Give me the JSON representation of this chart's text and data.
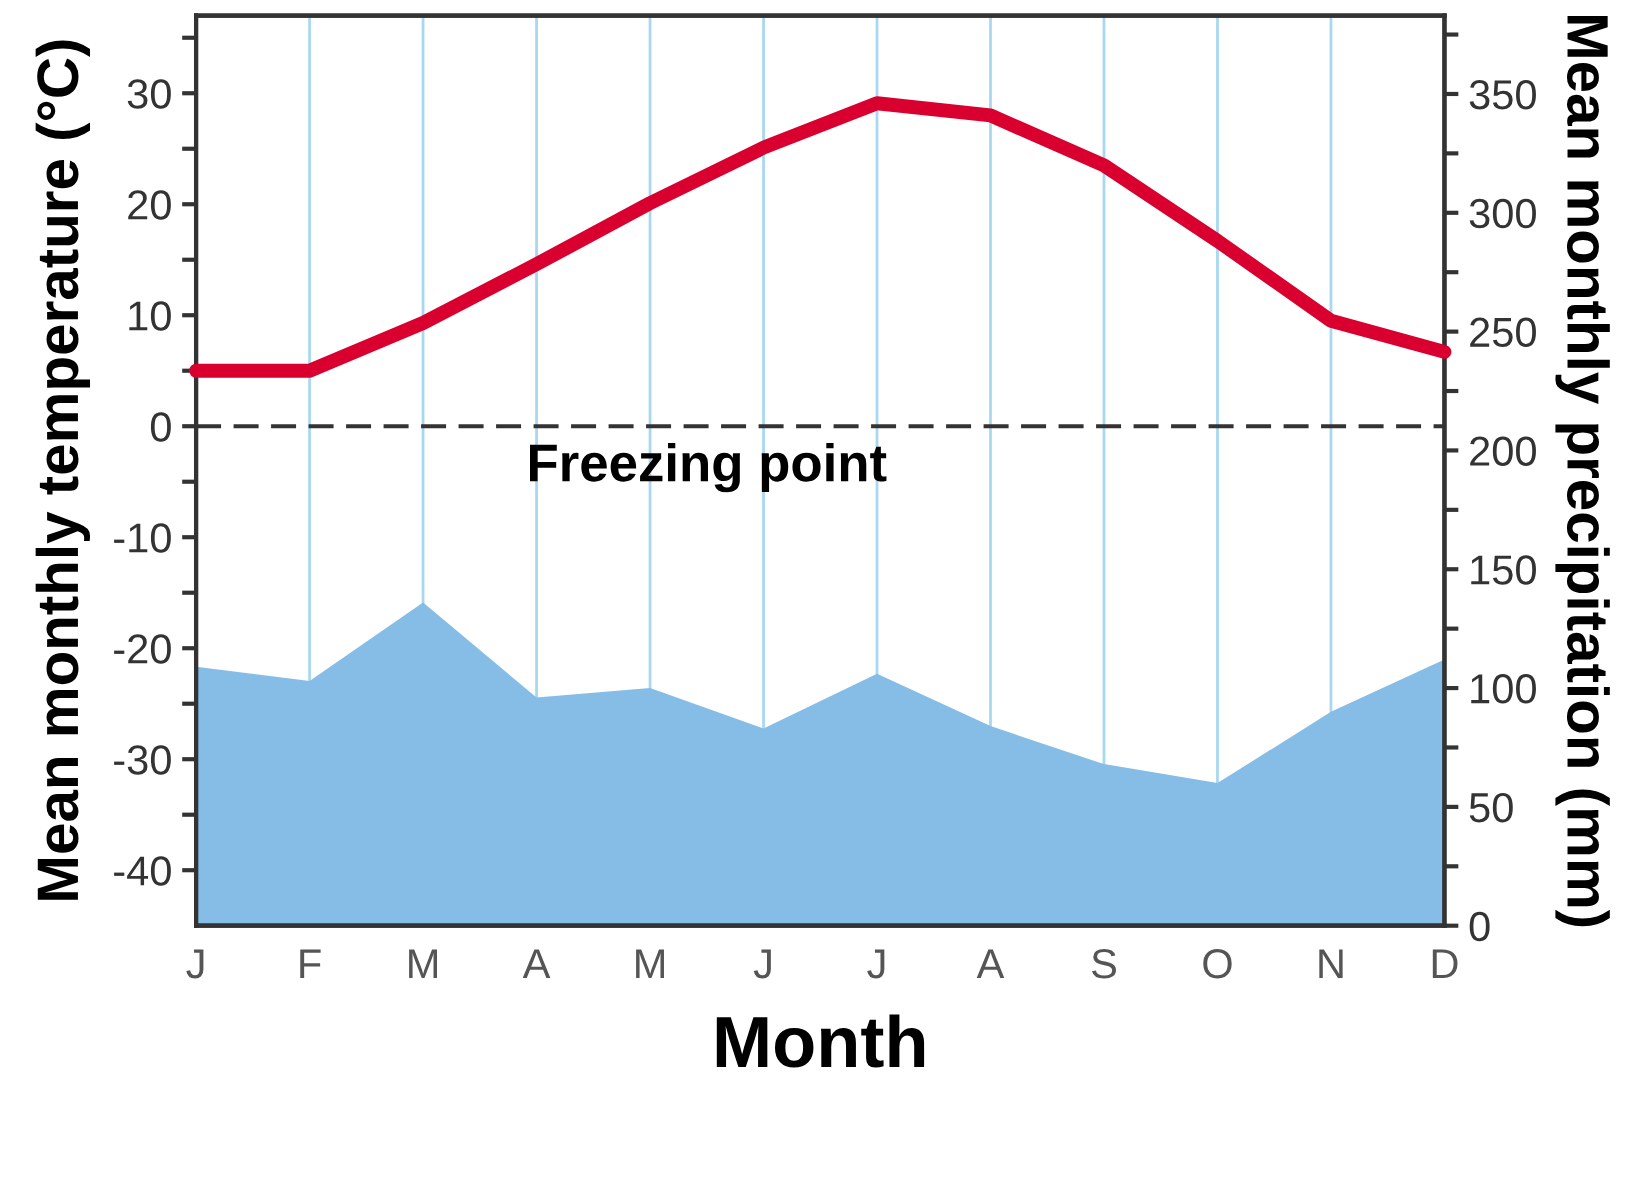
{
  "chart_data": {
    "type": "line",
    "xlabel": "Month",
    "ylabel": "Mean monthly temperature (°C)",
    "y2label": "Mean monthly precipitation (mm)",
    "categories": [
      "J",
      "F",
      "M",
      "A",
      "M",
      "J",
      "J",
      "A",
      "S",
      "O",
      "N",
      "D"
    ],
    "series": [
      {
        "type": "area",
        "axis": "y2",
        "color": "#85bde6",
        "values": [
          109,
          103,
          136,
          96,
          100,
          83,
          106,
          84,
          68,
          60,
          90,
          112
        ]
      },
      {
        "color": "#d9002f",
        "values": [
          5,
          5,
          9.3,
          14.6,
          20.1,
          25.1,
          29.1,
          28,
          23.5,
          16.7,
          9.5,
          6.7
        ]
      }
    ],
    "ylim": [
      -45,
      37
    ],
    "yticks": [
      -40,
      {
        "value": -35,
        "label": null
      },
      -30,
      {
        "value": -25,
        "label": null
      },
      -20,
      {
        "value": -15,
        "label": null
      },
      -10,
      {
        "value": -5,
        "label": null
      },
      0,
      {
        "value": 5,
        "label": null
      },
      10,
      {
        "value": 15,
        "label": null
      },
      20,
      {
        "value": 25,
        "label": null
      },
      30,
      {
        "value": 35,
        "label": null
      }
    ],
    "y2lim": [
      0,
      383
    ],
    "y2ticks": [
      0,
      {
        "value": 25,
        "label": null
      },
      50,
      {
        "value": 75,
        "label": null
      },
      100,
      {
        "value": 125,
        "label": null
      },
      150,
      {
        "value": 175,
        "label": null
      },
      200,
      {
        "value": 225,
        "label": null
      },
      250,
      {
        "value": 275,
        "label": null
      },
      300,
      {
        "value": 325,
        "label": null
      },
      350,
      {
        "value": 375,
        "label": null
      }
    ],
    "grid": "x",
    "line_style": "solid",
    "ref_lines": [
      {
        "axis": "y",
        "value": 0,
        "label": "Freezing point",
        "color": "#333333",
        "line_style": "dashed"
      }
    ]
  }
}
